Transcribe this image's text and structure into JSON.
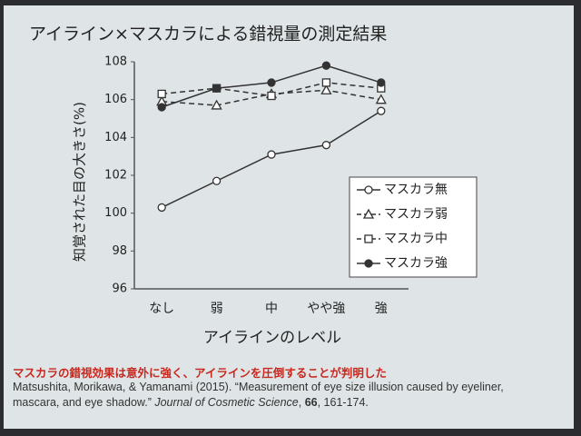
{
  "chart_data": {
    "type": "line",
    "title": "アイライン×マスカラによる錯視量の測定結果",
    "ylabel": "知覚された目の大きさ(%)",
    "xlabel": "アイラインのレベル",
    "categories": [
      "なし",
      "弱",
      "中",
      "やや強",
      "強"
    ],
    "series": [
      {
        "name": "マスカラ無",
        "color": "#333333",
        "fill": "#ffffff",
        "marker": "circle",
        "dashed": false,
        "values": [
          100.3,
          101.7,
          103.1,
          103.6,
          105.4
        ]
      },
      {
        "name": "マスカラ弱",
        "color": "#333333",
        "fill": "#ffffff",
        "marker": "triangle",
        "dashed": true,
        "values": [
          105.9,
          105.7,
          106.3,
          106.5,
          106.0
        ]
      },
      {
        "name": "マスカラ中",
        "color": "#333333",
        "fill": "#ffffff",
        "marker": "square",
        "dashed": true,
        "values": [
          106.3,
          106.6,
          106.2,
          106.9,
          106.6
        ]
      },
      {
        "name": "マスカラ強",
        "color": "#333333",
        "fill": "#333333",
        "marker": "circle",
        "dashed": false,
        "values": [
          105.6,
          106.6,
          106.9,
          107.8,
          106.9
        ]
      }
    ],
    "ylim": [
      96,
      108
    ],
    "yticks": [
      96,
      98,
      100,
      102,
      104,
      106,
      108
    ],
    "grid": false,
    "legend": "lower right",
    "note": "マスカラの錯視効果は意外に強く、アイラインを圧倒することが判明した",
    "citation": [
      "Matsushita, Morikawa, & Yamanami (2015). “Measurement of eye size illusion caused by eyeliner, mascara, and eye shadow.” ",
      "Journal of Cosmetic Science",
      ", ",
      "66",
      ", 161-174."
    ]
  }
}
